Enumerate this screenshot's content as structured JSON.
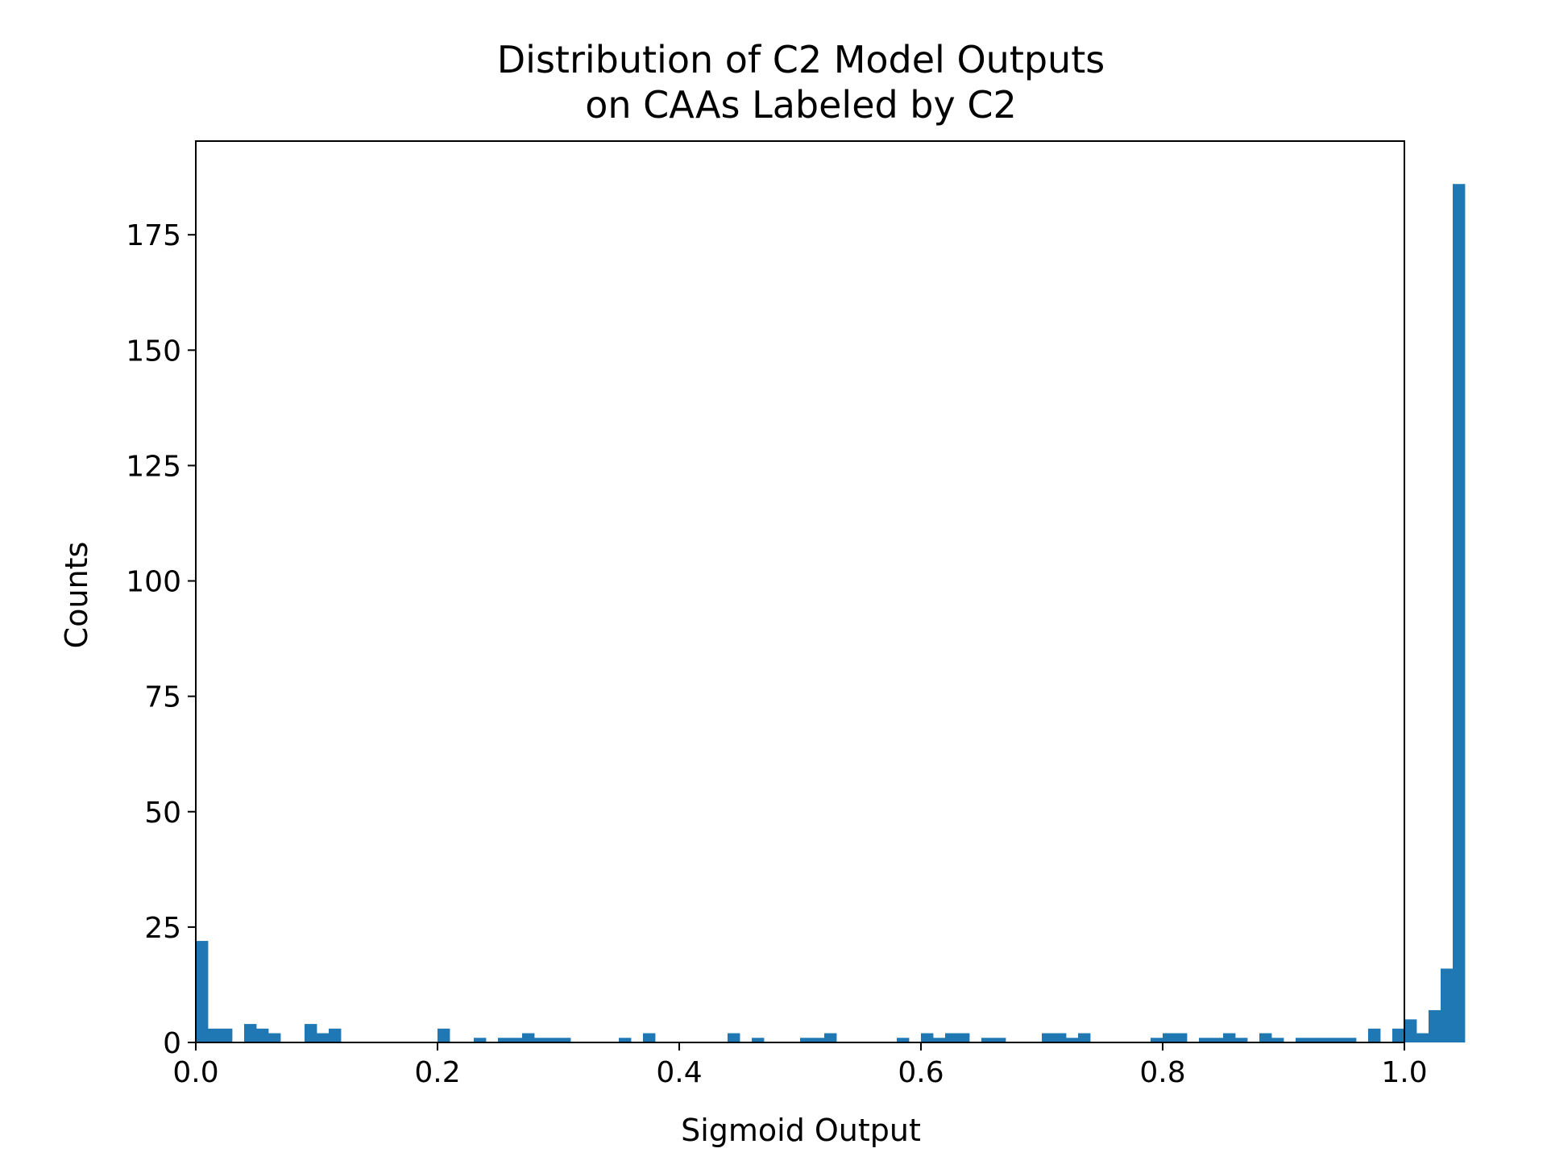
{
  "chart_data": {
    "type": "bar",
    "title_lines": [
      "Distribution of C2 Model Outputs",
      "on CAAs Labeled by C2"
    ],
    "xlabel": "Sigmoid Output",
    "ylabel": "Counts",
    "xlim": [
      0.0,
      1.0
    ],
    "ylim": [
      0,
      195.3
    ],
    "xticks": [
      0.0,
      0.2,
      0.4,
      0.6,
      0.8,
      1.0
    ],
    "xtick_labels": [
      "0.0",
      "0.2",
      "0.4",
      "0.6",
      "0.8",
      "1.0"
    ],
    "yticks": [
      0,
      25,
      50,
      75,
      100,
      125,
      150,
      175
    ],
    "ytick_labels": [
      "0",
      "25",
      "50",
      "75",
      "100",
      "125",
      "150",
      "175"
    ],
    "grid": false,
    "color": "#1f77b4",
    "bin_width": 0.01,
    "bin_edges_start": 0.0,
    "values": [
      22,
      3,
      3,
      0,
      4,
      3,
      2,
      0,
      0,
      4,
      2,
      3,
      0,
      0,
      0,
      0,
      0,
      0,
      0,
      0,
      3,
      0,
      0,
      1,
      0,
      1,
      1,
      2,
      1,
      1,
      1,
      0,
      0,
      0,
      0,
      1,
      0,
      2,
      0,
      0,
      0,
      0,
      0,
      0,
      2,
      0,
      1,
      0,
      0,
      0,
      1,
      1,
      2,
      0,
      0,
      0,
      0,
      0,
      1,
      0,
      2,
      1,
      2,
      2,
      0,
      1,
      1,
      0,
      0,
      0,
      2,
      2,
      1,
      2,
      0,
      0,
      0,
      0,
      0,
      1,
      2,
      2,
      0,
      1,
      1,
      2,
      1,
      0,
      2,
      1,
      0,
      1,
      1,
      1,
      1,
      1,
      0,
      3,
      0,
      3,
      5,
      2,
      7,
      16,
      186
    ]
  }
}
